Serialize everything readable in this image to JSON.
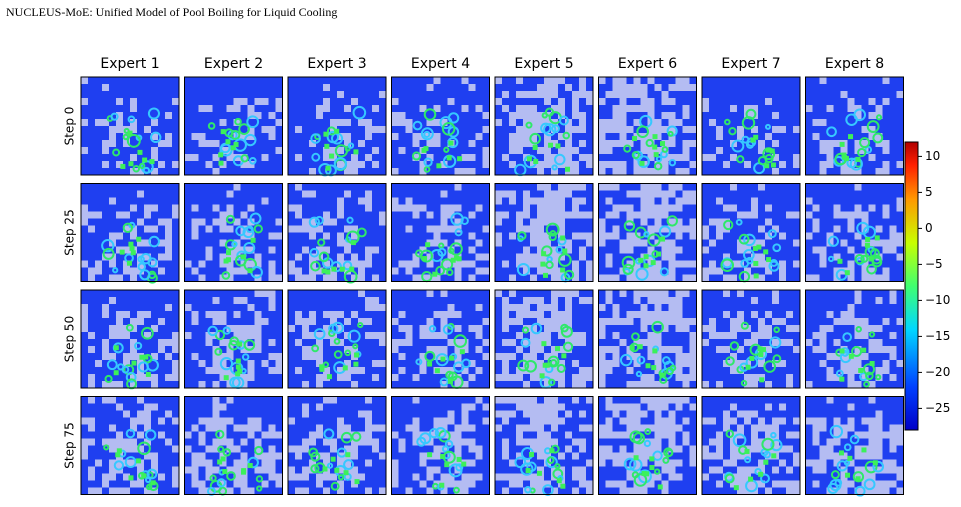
{
  "header": {
    "title": "NUCLEUS-MoE: Unified Model of Pool Boiling for Liquid Cooling"
  },
  "columns": [
    "Expert 1",
    "Expert 2",
    "Expert 3",
    "Expert 4",
    "Expert 5",
    "Expert 6",
    "Expert 7",
    "Expert 8"
  ],
  "rows": [
    "Step 0",
    "Step 25",
    "Step 50",
    "Step 75"
  ],
  "colorbar": {
    "lim": [
      -28,
      12
    ],
    "ticks": [
      10,
      5,
      0,
      {
        "value": -5,
        "label": "−5"
      },
      {
        "value": -10,
        "label": "−10"
      },
      {
        "value": -15,
        "label": "−15"
      },
      {
        "value": -20,
        "label": "−20"
      },
      {
        "value": -25,
        "label": "−25"
      }
    ]
  }
}
